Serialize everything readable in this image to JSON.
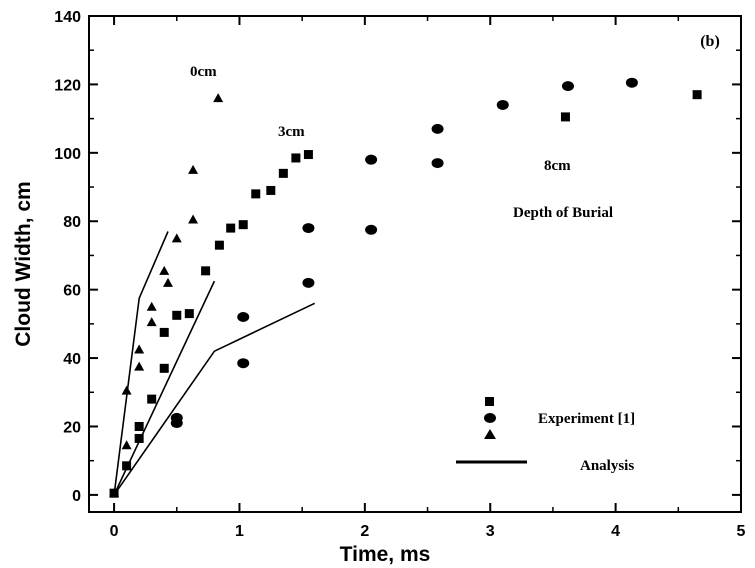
{
  "chart_data": {
    "type": "scatter",
    "panel_label": "(b)",
    "xlabel": "Time, ms",
    "ylabel": "Cloud Width, cm",
    "xlim": [
      -0.2,
      5
    ],
    "ylim": [
      -5,
      140
    ],
    "xticks": [
      0,
      1,
      2,
      3,
      4,
      5
    ],
    "yticks": [
      0,
      20,
      40,
      60,
      80,
      100,
      120,
      140
    ],
    "grid": false,
    "annotations": {
      "depth_0": "0cm",
      "depth_3": "3cm",
      "depth_8": "8cm",
      "caption": "Depth of  Burial"
    },
    "legend": {
      "placement": "bottom-right",
      "experiment_label": "Experiment [1]",
      "analysis_label": "Analysis"
    },
    "series": [
      {
        "marker": "triangle",
        "points": [
          [
            0,
            0.5
          ],
          [
            0.1,
            30.5
          ],
          [
            0.1,
            14.5
          ],
          [
            0.2,
            42.5
          ],
          [
            0.2,
            37.5
          ],
          [
            0.3,
            55
          ],
          [
            0.3,
            50.5
          ],
          [
            0.4,
            65.5
          ],
          [
            0.43,
            62
          ],
          [
            0.5,
            75
          ],
          [
            0.63,
            80.5
          ],
          [
            0.63,
            95
          ],
          [
            0.83,
            116
          ]
        ]
      },
      {
        "marker": "square",
        "points": [
          [
            0,
            0.5
          ],
          [
            0.1,
            8.5
          ],
          [
            0.2,
            16.5
          ],
          [
            0.2,
            20
          ],
          [
            0.3,
            28
          ],
          [
            0.4,
            37
          ],
          [
            0.4,
            47.5
          ],
          [
            0.5,
            52.5
          ],
          [
            0.6,
            53
          ],
          [
            0.73,
            65.5
          ],
          [
            0.84,
            73
          ],
          [
            0.93,
            78
          ],
          [
            1.03,
            79
          ],
          [
            1.13,
            88
          ],
          [
            1.25,
            89
          ],
          [
            1.35,
            94
          ],
          [
            1.45,
            98.5
          ],
          [
            1.55,
            99.5
          ],
          [
            3.6,
            110.5
          ],
          [
            4.65,
            117
          ]
        ]
      },
      {
        "marker": "circle",
        "points": [
          [
            0.5,
            22.5
          ],
          [
            0.5,
            21
          ],
          [
            1.03,
            38.5
          ],
          [
            1.03,
            52
          ],
          [
            1.55,
            62
          ],
          [
            1.55,
            78
          ],
          [
            2.05,
            77.5
          ],
          [
            2.05,
            98
          ],
          [
            2.58,
            97
          ],
          [
            2.58,
            107
          ],
          [
            3.1,
            114
          ],
          [
            3.62,
            119.5
          ],
          [
            4.13,
            120.5
          ]
        ]
      }
    ],
    "analysis_lines": [
      {
        "depth": "0cm",
        "points": [
          [
            0,
            0
          ],
          [
            0.2,
            57.5
          ],
          [
            0.43,
            77
          ]
        ]
      },
      {
        "depth": "3cm",
        "points": [
          [
            0,
            0
          ],
          [
            0.8,
            62.5
          ]
        ]
      },
      {
        "depth": "8cm",
        "points": [
          [
            0,
            0
          ],
          [
            0.8,
            42
          ],
          [
            1.6,
            56
          ]
        ]
      }
    ]
  }
}
